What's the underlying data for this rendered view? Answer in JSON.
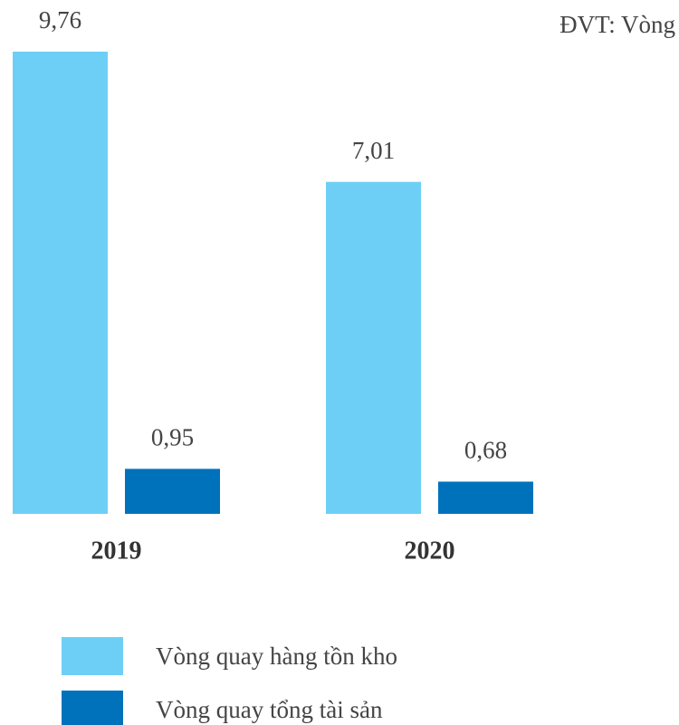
{
  "chart_data": {
    "type": "bar",
    "subtitle": "ĐVT: Vòng",
    "categories": [
      "2019",
      "2020"
    ],
    "series": [
      {
        "name": "Vòng quay hàng tồn kho",
        "color": "#6dcff6",
        "values": [
          9.76,
          7.01
        ],
        "value_labels": [
          "9,76",
          "7,01"
        ]
      },
      {
        "name": "Vòng quay tổng tài sản",
        "color": "#0072bc",
        "values": [
          0.95,
          0.68
        ],
        "value_labels": [
          "0,95",
          "0,68"
        ]
      }
    ]
  }
}
